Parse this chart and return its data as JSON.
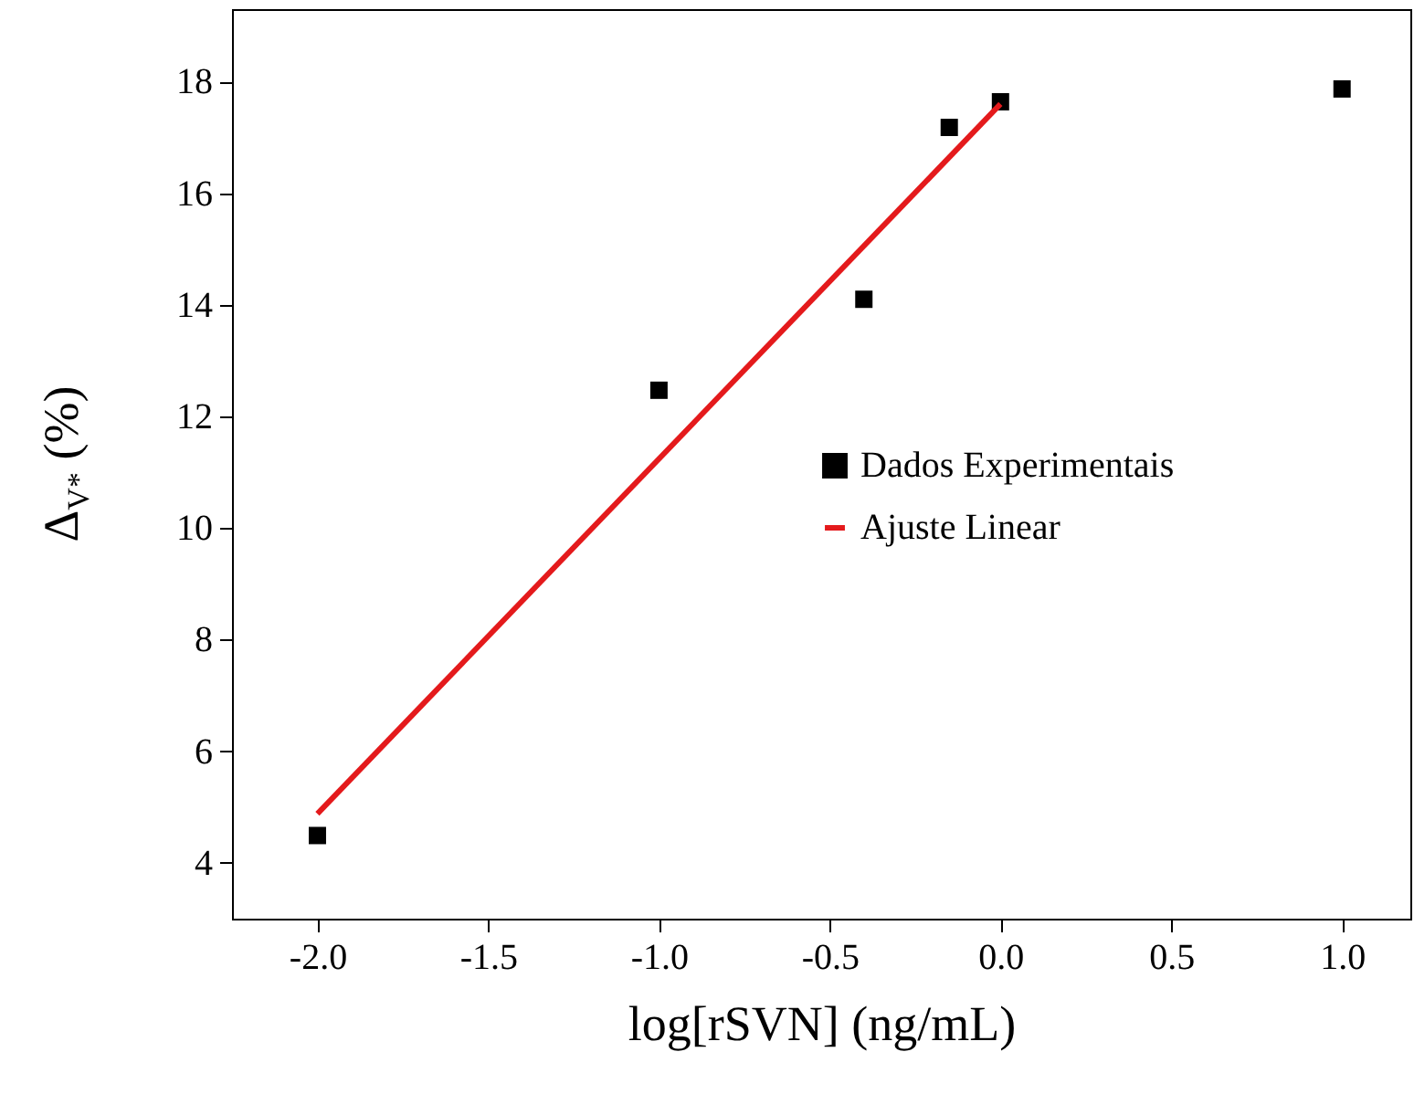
{
  "chart_data": {
    "type": "scatter",
    "xlabel": "log[rSVN] (ng/mL)",
    "ylabel": "Δ$_{V*}$ (%)",
    "xlim": [
      -2.25,
      1.2
    ],
    "ylim": [
      3,
      19.3
    ],
    "xticks": [
      {
        "value": -2,
        "label": "-2.0"
      },
      {
        "value": -1.5,
        "label": "-1.5"
      },
      {
        "value": -1,
        "label": "-1.0"
      },
      {
        "value": -0.5,
        "label": "-0.5"
      },
      {
        "value": 0,
        "label": "0.0"
      },
      {
        "value": 0.5,
        "label": "0.5"
      },
      {
        "value": 1,
        "label": "1.0"
      }
    ],
    "yticks": [
      4,
      6,
      8,
      10,
      12,
      14,
      16,
      18
    ],
    "grid": false,
    "legend": "right",
    "marker": "square",
    "series": [
      {
        "name": "Dados Experimentais",
        "color": "#000000",
        "x": [
          -2,
          -1,
          -0.4,
          -0.15,
          0,
          1
        ],
        "values": [
          4.49,
          12.47,
          14.1,
          17.18,
          17.64,
          17.87
        ]
      },
      {
        "name": "Ajuste Linear",
        "type": "line",
        "color": "#e41a1c",
        "line_style": "solid",
        "marker": "none",
        "x": [
          -2,
          0
        ],
        "values": [
          4.88,
          17.6
        ]
      }
    ]
  }
}
